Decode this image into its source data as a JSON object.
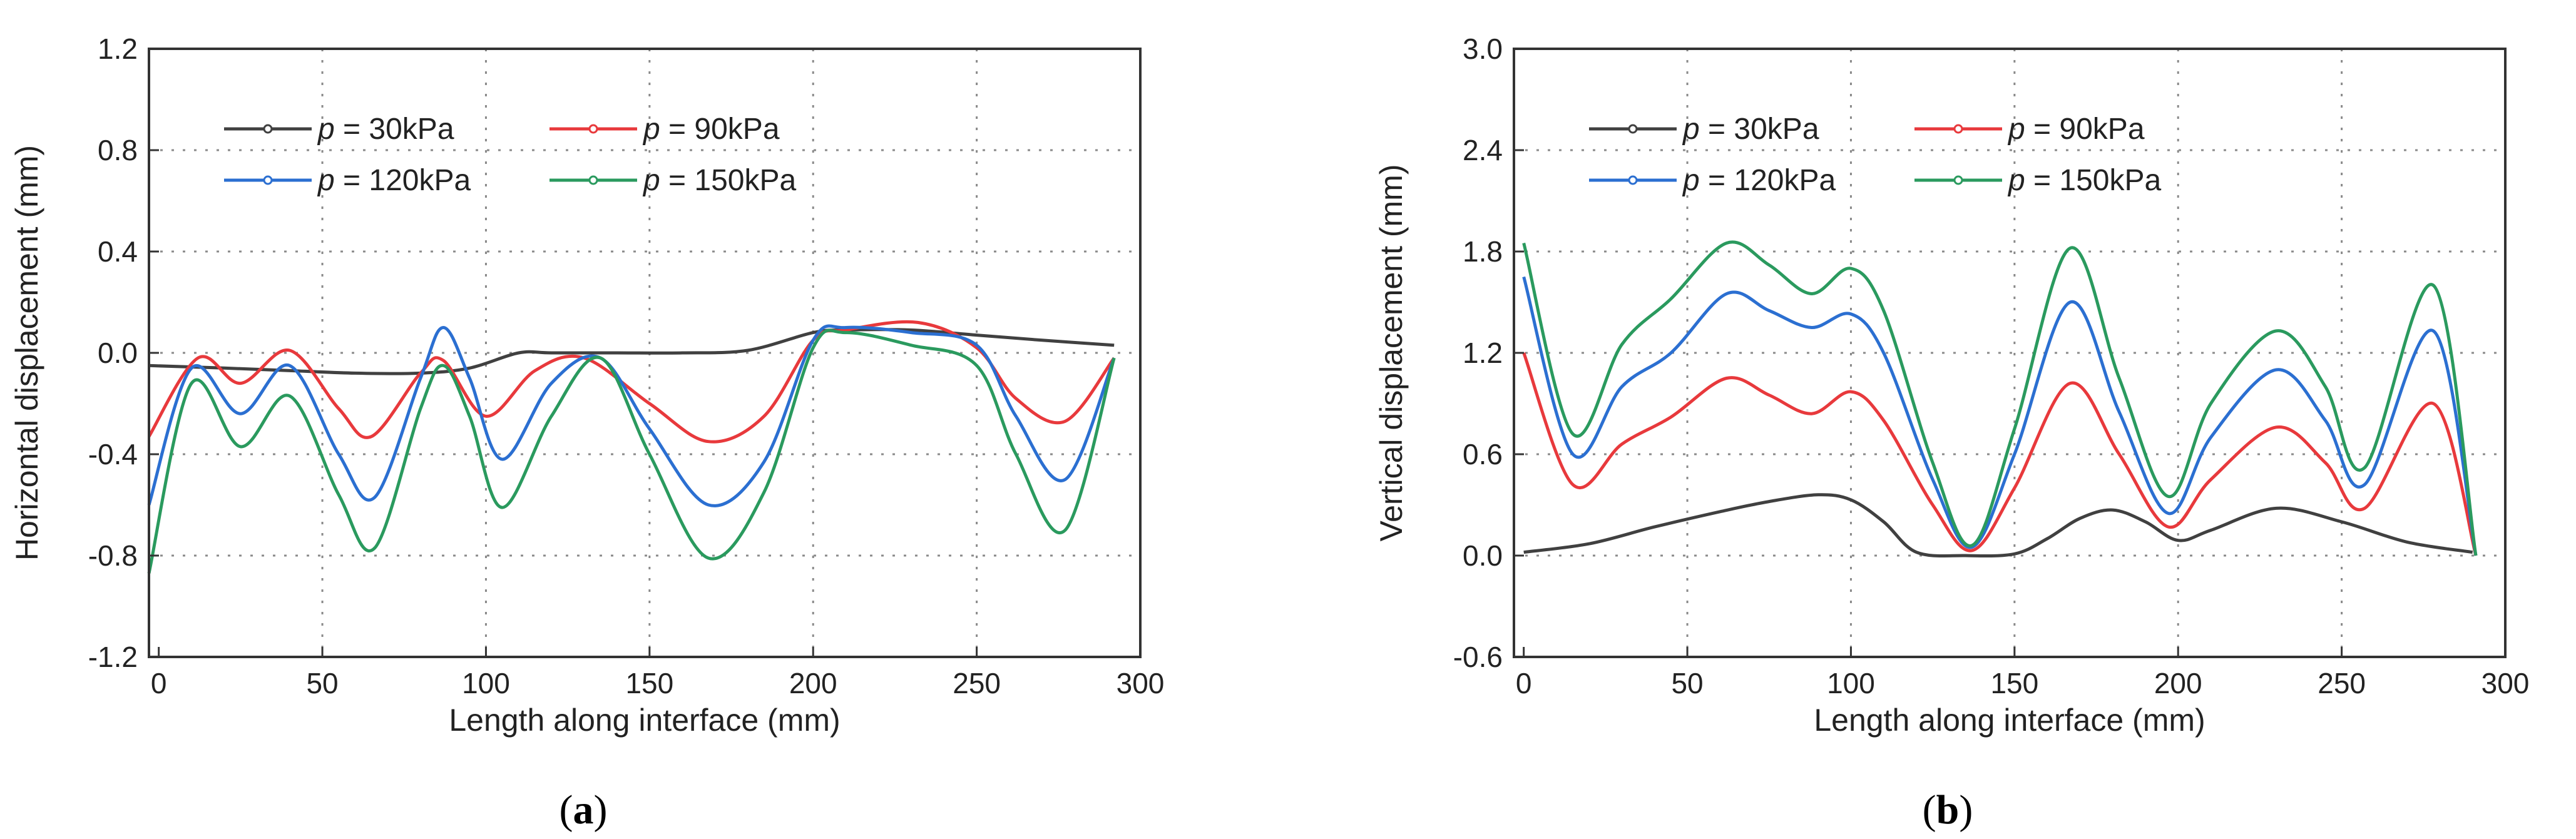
{
  "chart_data": [
    {
      "type": "line",
      "panel_label": "a",
      "xlabel": "Length along interface (mm)",
      "ylabel": "Horizontal  displacement (mm)",
      "xlim": [
        -3,
        300
      ],
      "ylim": [
        -1.2,
        1.2
      ],
      "xticks": [
        0,
        50,
        100,
        150,
        200,
        250,
        300
      ],
      "yticks": [
        1.2,
        0.8,
        0.4,
        0.0,
        -0.4,
        -0.8,
        -1.2
      ],
      "ytick_labels": [
        "1.2",
        "0.8",
        "0.4",
        "0.0",
        "-0.4",
        "-0.8",
        "-1.2"
      ],
      "grid": true,
      "legend_position": "top-left",
      "series": [
        {
          "name": "p = 30kPa",
          "p": "p",
          "rest": " = 30kPa",
          "color": "#404040",
          "x": [
            -3,
            20,
            40,
            60,
            80,
            95,
            110,
            120,
            140,
            160,
            180,
            200,
            210,
            230,
            250,
            270,
            292
          ],
          "y": [
            -0.05,
            -0.06,
            -0.07,
            -0.08,
            -0.08,
            -0.06,
            0.0,
            0.0,
            0.0,
            0.0,
            0.01,
            0.08,
            0.09,
            0.09,
            0.07,
            0.05,
            0.03
          ]
        },
        {
          "name": "p = 90kPa",
          "p": "p",
          "rest": " = 90kPa",
          "color": "#e8393c",
          "x": [
            -3,
            12,
            25,
            40,
            55,
            65,
            80,
            87,
            100,
            115,
            130,
            150,
            168,
            185,
            200,
            210,
            232,
            250,
            262,
            277,
            292
          ],
          "y": [
            -0.33,
            -0.02,
            -0.12,
            0.01,
            -0.22,
            -0.33,
            -0.08,
            -0.03,
            -0.25,
            -0.07,
            -0.02,
            -0.2,
            -0.35,
            -0.25,
            0.05,
            0.09,
            0.12,
            0.02,
            -0.18,
            -0.27,
            -0.02
          ]
        },
        {
          "name": "p = 120kPa",
          "p": "p",
          "rest": " = 120kPa",
          "color": "#2b6fd1",
          "x": [
            -3,
            10,
            25,
            40,
            55,
            66,
            80,
            87,
            95,
            105,
            120,
            135,
            150,
            168,
            185,
            200,
            210,
            230,
            250,
            262,
            277,
            292
          ],
          "y": [
            -0.6,
            -0.06,
            -0.24,
            -0.05,
            -0.4,
            -0.57,
            -0.1,
            0.1,
            -0.1,
            -0.42,
            -0.12,
            -0.02,
            -0.3,
            -0.6,
            -0.43,
            0.05,
            0.1,
            0.08,
            0.03,
            -0.25,
            -0.5,
            -0.02
          ]
        },
        {
          "name": "p = 150kPa",
          "p": "p",
          "rest": " = 150kPa",
          "color": "#2a9a5e",
          "x": [
            -3,
            10,
            25,
            40,
            55,
            66,
            80,
            87,
            95,
            105,
            120,
            135,
            150,
            168,
            185,
            200,
            210,
            230,
            250,
            262,
            277,
            292
          ],
          "y": [
            -0.87,
            -0.12,
            -0.37,
            -0.17,
            -0.56,
            -0.77,
            -0.22,
            -0.05,
            -0.25,
            -0.61,
            -0.25,
            -0.02,
            -0.4,
            -0.81,
            -0.55,
            0.02,
            0.08,
            0.03,
            -0.05,
            -0.4,
            -0.7,
            -0.02
          ]
        }
      ]
    },
    {
      "type": "line",
      "panel_label": "b",
      "xlabel": "Length along interface (mm)",
      "ylabel": "Vertical  displacement (mm)",
      "xlim": [
        -3,
        300
      ],
      "ylim": [
        -0.6,
        3.0
      ],
      "xticks": [
        0,
        50,
        100,
        150,
        200,
        250,
        300
      ],
      "yticks": [
        3.0,
        2.4,
        1.8,
        1.2,
        0.6,
        0.0,
        -0.6
      ],
      "ytick_labels": [
        "3.0",
        "2.4",
        "1.8",
        "1.2",
        "0.6",
        "0.0",
        "-0.6"
      ],
      "grid": true,
      "legend_position": "top-left",
      "series": [
        {
          "name": "p = 30kPa",
          "p": "p",
          "rest": " = 30kPa",
          "color": "#404040",
          "x": [
            0,
            20,
            40,
            60,
            75,
            90,
            100,
            110,
            120,
            135,
            150,
            160,
            170,
            180,
            190,
            200,
            210,
            230,
            250,
            270,
            290
          ],
          "y": [
            0.02,
            0.07,
            0.17,
            0.26,
            0.32,
            0.36,
            0.33,
            0.2,
            0.02,
            0.0,
            0.01,
            0.1,
            0.22,
            0.27,
            0.2,
            0.09,
            0.15,
            0.28,
            0.2,
            0.08,
            0.02
          ]
        },
        {
          "name": "p = 90kPa",
          "p": "p",
          "rest": " = 90kPa",
          "color": "#e8393c",
          "x": [
            0,
            15,
            30,
            45,
            62,
            75,
            88,
            100,
            110,
            125,
            137,
            150,
            167,
            182,
            197,
            210,
            230,
            245,
            257,
            278,
            291
          ],
          "y": [
            1.2,
            0.42,
            0.66,
            0.82,
            1.05,
            0.95,
            0.84,
            0.97,
            0.8,
            0.3,
            0.03,
            0.4,
            1.02,
            0.6,
            0.17,
            0.45,
            0.76,
            0.55,
            0.28,
            0.9,
            0.0
          ]
        },
        {
          "name": "p = 120kPa",
          "p": "p",
          "rest": " = 120kPa",
          "color": "#2b6fd1",
          "x": [
            0,
            15,
            30,
            45,
            62,
            75,
            88,
            100,
            110,
            125,
            137,
            150,
            167,
            182,
            197,
            210,
            230,
            245,
            257,
            278,
            291
          ],
          "y": [
            1.65,
            0.6,
            1.0,
            1.2,
            1.55,
            1.45,
            1.35,
            1.43,
            1.2,
            0.45,
            0.05,
            0.6,
            1.5,
            0.85,
            0.25,
            0.7,
            1.1,
            0.8,
            0.42,
            1.33,
            0.0
          ]
        },
        {
          "name": "p = 150kPa",
          "p": "p",
          "rest": " = 150kPa",
          "color": "#2a9a5e",
          "x": [
            0,
            15,
            30,
            45,
            62,
            75,
            88,
            100,
            110,
            125,
            137,
            150,
            167,
            182,
            197,
            210,
            230,
            245,
            257,
            278,
            291
          ],
          "y": [
            1.85,
            0.72,
            1.25,
            1.52,
            1.85,
            1.72,
            1.55,
            1.7,
            1.45,
            0.55,
            0.06,
            0.75,
            1.82,
            1.05,
            0.35,
            0.9,
            1.33,
            1.0,
            0.52,
            1.6,
            0.0
          ]
        }
      ]
    }
  ]
}
